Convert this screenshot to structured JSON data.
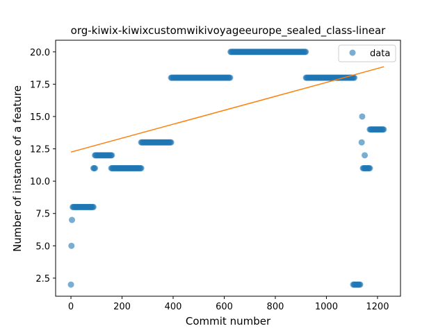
{
  "chart_data": {
    "type": "scatter",
    "title": "org-kiwix-kiwixcustomwikivoyageeurope_sealed_class-linear",
    "xlabel": "Commit number",
    "ylabel": "Number of instance of a feature",
    "xlim": [
      -60,
      1290
    ],
    "ylim": [
      1.1,
      20.9
    ],
    "xticks": [
      0,
      200,
      400,
      600,
      800,
      1000,
      1200
    ],
    "yticks": [
      2.5,
      5.0,
      7.5,
      10.0,
      12.5,
      15.0,
      17.5,
      20.0
    ],
    "ytick_labels": [
      "2.5",
      "5.0",
      "7.5",
      "10.0",
      "12.5",
      "15.0",
      "17.5",
      "20.0"
    ],
    "grid": false,
    "legend": {
      "entries": [
        "data"
      ],
      "placement": "top-right"
    },
    "colors": {
      "data": "#1f77b4",
      "fit": "#ff7f0e"
    },
    "series": [
      {
        "name": "data",
        "kind": "scatter",
        "segments": [
          {
            "x_start": 0,
            "x_end": 0,
            "y": 2
          },
          {
            "x_start": 2,
            "x_end": 3,
            "y": 5
          },
          {
            "x_start": 4,
            "x_end": 6,
            "y": 7
          },
          {
            "x_start": 7,
            "x_end": 90,
            "y": 8
          },
          {
            "x_start": 88,
            "x_end": 94,
            "y": 11
          },
          {
            "x_start": 94,
            "x_end": 160,
            "y": 12
          },
          {
            "x_start": 158,
            "x_end": 275,
            "y": 11
          },
          {
            "x_start": 275,
            "x_end": 392,
            "y": 13
          },
          {
            "x_start": 392,
            "x_end": 625,
            "y": 18
          },
          {
            "x_start": 625,
            "x_end": 920,
            "y": 20
          },
          {
            "x_start": 920,
            "x_end": 1110,
            "y": 18
          },
          {
            "x_start": 1105,
            "x_end": 1132,
            "y": 2
          },
          {
            "x_start": 1138,
            "x_end": 1138,
            "y": 13
          },
          {
            "x_start": 1140,
            "x_end": 1140,
            "y": 15
          },
          {
            "x_start": 1150,
            "x_end": 1150,
            "y": 12
          },
          {
            "x_start": 1143,
            "x_end": 1170,
            "y": 11
          },
          {
            "x_start": 1170,
            "x_end": 1225,
            "y": 14
          }
        ]
      },
      {
        "kind": "line",
        "x": [
          0,
          1225
        ],
        "y": [
          12.25,
          18.85
        ]
      }
    ]
  }
}
